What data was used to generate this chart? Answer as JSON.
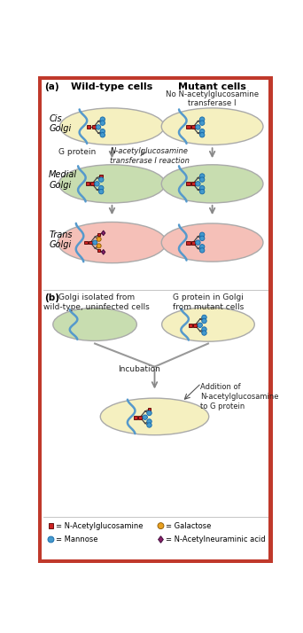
{
  "bg_color": "#ffffff",
  "border_color": "#c0392b",
  "cis_color": "#f5f0c0",
  "medial_color": "#c8ddb0",
  "trans_color": "#f5c0b8",
  "nacetyl_color": "#cc2222",
  "mannose_color": "#4499cc",
  "galactose_color": "#e8a020",
  "neuraminic_color": "#882266",
  "membrane_color": "#5599cc",
  "arrow_color": "#888888",
  "text_color": "#222222",
  "title_a": "(a)",
  "title_b": "(b)",
  "wt_title": "Wild-type cells",
  "mut_title": "Mutant cells",
  "no_transferase_label": "No N-acetylglucosamine\ntransferase I",
  "g_protein_label": "G protein",
  "transferase_label": "N-acetylglucosamine\ntransferase I reaction",
  "b_left_label": "Golgi isolated from\nwild-type, uninfected cells",
  "b_right_label": "G protein in Golgi\nfrom mutant cells",
  "incubation_label": "Incubation",
  "addition_label": "Addition of\nN-acetylglucosamine\nto G protein"
}
